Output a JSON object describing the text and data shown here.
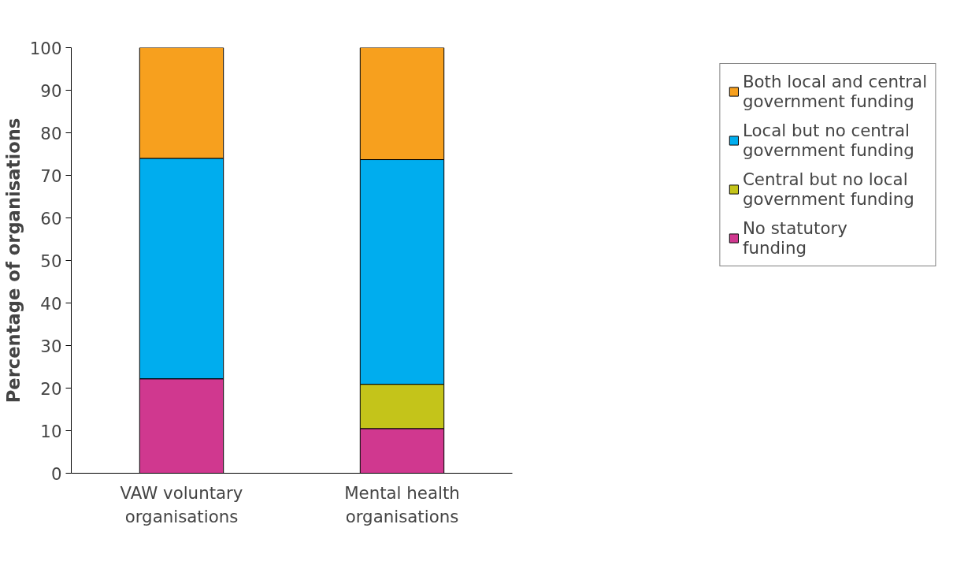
{
  "chart_data": {
    "type": "bar",
    "stacked": true,
    "ylabel": "Percentage of organisations",
    "categories": [
      "VAW voluntary organisations",
      "Mental health organisations"
    ],
    "series": [
      {
        "name": "No statutory funding",
        "color": "#d0388f",
        "values": [
          22.2,
          10.5
        ]
      },
      {
        "name": "Central but no local government funding",
        "color": "#c4c41a",
        "values": [
          0,
          10.4
        ]
      },
      {
        "name": "Local but no central government funding",
        "color": "#00adee",
        "values": [
          51.8,
          52.8
        ]
      },
      {
        "name": "Both local and central government funding",
        "color": "#f7a01e",
        "values": [
          26,
          26.3
        ]
      }
    ],
    "ylim": [
      0,
      100
    ],
    "yticks": [
      0,
      10,
      20,
      30,
      40,
      50,
      60,
      70,
      80,
      90,
      100
    ],
    "grid": false,
    "legend": "right"
  }
}
